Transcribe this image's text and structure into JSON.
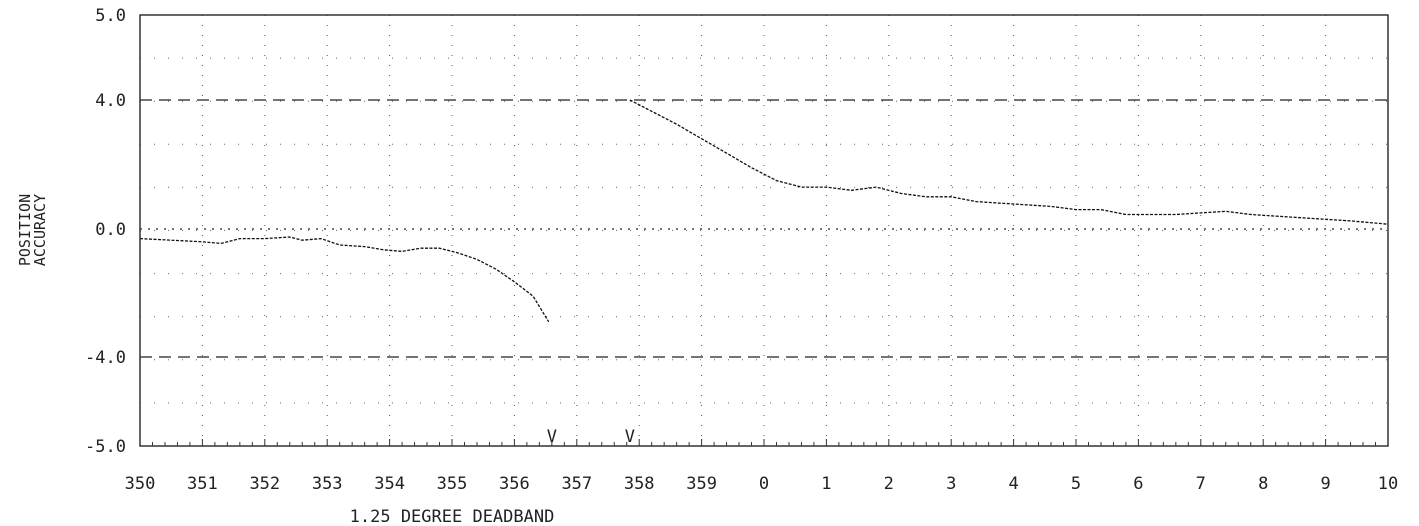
{
  "chart_data": {
    "type": "line",
    "title": "",
    "xlabel": "1.25 DEGREE DEADBAND",
    "ylabel": "POSITION ACCURACY",
    "ylim": [
      -5.0,
      5.0
    ],
    "yticks": [
      "5.0",
      "4.0",
      "0.0",
      "-4.0",
      "-5.0"
    ],
    "xticks": [
      "350",
      "351",
      "352",
      "353",
      "354",
      "355",
      "356",
      "357",
      "358",
      "359",
      "0",
      "1",
      "2",
      "3",
      "4",
      "5",
      "6",
      "7",
      "8",
      "9",
      "10"
    ],
    "xrange": [
      350,
      370
    ],
    "grid": true,
    "reference_lines": [
      4.0,
      0.0,
      -4.0
    ],
    "markers": [
      {
        "label": "V",
        "x": 356.6
      },
      {
        "label": "V",
        "x": 357.85
      }
    ],
    "series": [
      {
        "segment": 1,
        "x": [
          350.0,
          350.5,
          351.0,
          351.3,
          351.6,
          352.0,
          352.4,
          352.6,
          352.9,
          353.2,
          353.6,
          353.9,
          354.2,
          354.5,
          354.8,
          355.1,
          355.4,
          355.7,
          356.0,
          356.3,
          356.55
        ],
        "y": [
          -0.3,
          -0.35,
          -0.4,
          -0.45,
          -0.3,
          -0.3,
          -0.25,
          -0.35,
          -0.3,
          -0.5,
          -0.55,
          -0.65,
          -0.7,
          -0.6,
          -0.6,
          -0.75,
          -0.95,
          -1.25,
          -1.65,
          -2.1,
          -2.9
        ]
      },
      {
        "segment": 2,
        "x": [
          357.85,
          358.2,
          358.6,
          359.0,
          359.4,
          359.8,
          360.2,
          360.6,
          361.0,
          361.4,
          361.8,
          362.2,
          362.6,
          363.0,
          363.4,
          363.8,
          364.2,
          364.6,
          365.0,
          365.4,
          365.8,
          366.2,
          366.6,
          367.0,
          367.4,
          367.8,
          368.2,
          368.6,
          369.0,
          369.4,
          370.0
        ],
        "y": [
          4.0,
          3.65,
          3.25,
          2.8,
          2.35,
          1.9,
          1.5,
          1.3,
          1.3,
          1.2,
          1.3,
          1.1,
          1.0,
          1.0,
          0.85,
          0.8,
          0.75,
          0.7,
          0.6,
          0.6,
          0.45,
          0.45,
          0.45,
          0.5,
          0.55,
          0.45,
          0.4,
          0.35,
          0.3,
          0.25,
          0.15
        ]
      }
    ]
  }
}
